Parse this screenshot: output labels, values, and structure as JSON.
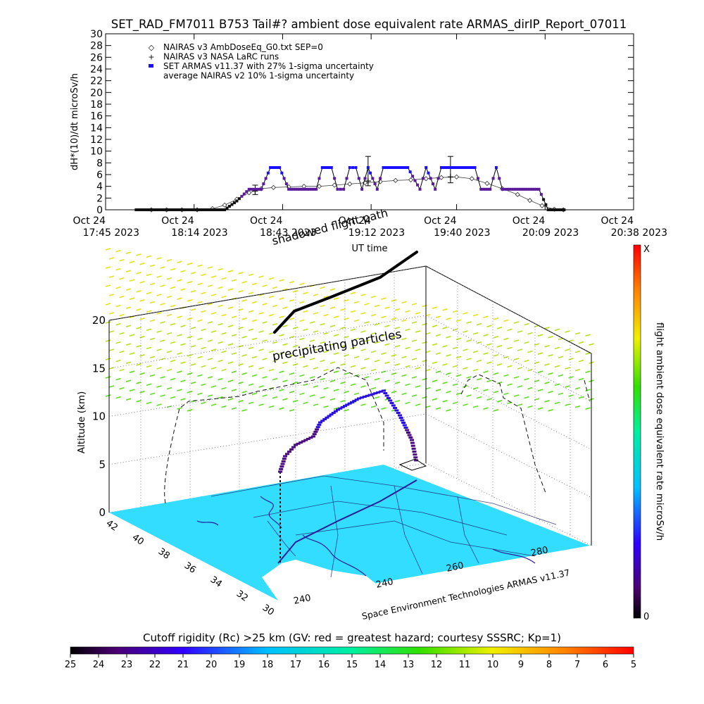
{
  "figure": {
    "title": "SET_RAD_FM7011  B753 Tail#? ambient dose equivalent rate ARMAS_dirIP_Report_07011",
    "credit": "Space Environment Technologies ARMAS v11.37"
  },
  "chart_data": [
    {
      "type": "line",
      "title": "SET_RAD_FM7011  B753 Tail#? ambient dose equivalent rate ARMAS_dirIP_Report_07011",
      "xlabel": "UT time",
      "ylabel": "dH*(10)/dt microSv/h",
      "ylim": [
        0,
        30
      ],
      "yticks": [
        0,
        2,
        4,
        6,
        8,
        10,
        12,
        14,
        16,
        18,
        20,
        22,
        24,
        26,
        28,
        30
      ],
      "xlim": [
        "2023-10-24 17:45",
        "2023-10-24 20:38"
      ],
      "xtick_values": [
        "17:45",
        "18:14",
        "18:43",
        "19:12",
        "19:40",
        "20:09",
        "20:38"
      ],
      "xtick_labels": [
        {
          "top": "Oct 24",
          "bottom": "17:45 2023"
        },
        {
          "top": "Oct 24",
          "bottom": "18:14 2023"
        },
        {
          "top": "Oct 24",
          "bottom": "18:43 2023"
        },
        {
          "top": "Oct 24",
          "bottom": "19:12 2023"
        },
        {
          "top": "Oct 24",
          "bottom": "19:40 2023"
        },
        {
          "top": "Oct 24",
          "bottom": "20:09 2023"
        },
        {
          "top": "Oct 24",
          "bottom": "20:38 2023"
        }
      ],
      "legend": [
        {
          "symbol": "◇",
          "label": "NAIRAS v3 AmbDoseEq_G0.txt SEP=0"
        },
        {
          "symbol": "+",
          "label": "NAIRAS v3 NASA LaRC runs"
        },
        {
          "symbol": "●",
          "label": "SET ARMAS v11.37 with 27% 1-sigma uncertainty",
          "color": "#1a10ff"
        },
        {
          "symbol": "",
          "label": "average NAIRAS v2 10% 1-sigma uncertainty"
        }
      ],
      "legend_position": "top-left",
      "series": [
        {
          "name": "NAIRAS v3 AmbDoseEq_G0.txt SEP=0",
          "marker": "diamond",
          "color": "#555555",
          "points": [
            [
              "18:00",
              0.0
            ],
            [
              "18:05",
              0.0
            ],
            [
              "18:10",
              0.0
            ],
            [
              "18:15",
              0.0
            ],
            [
              "18:20",
              0.2
            ],
            [
              "18:24",
              0.8
            ],
            [
              "18:28",
              1.8
            ],
            [
              "18:32",
              2.9
            ],
            [
              "18:36",
              3.6
            ],
            [
              "18:40",
              3.8
            ],
            [
              "18:45",
              3.9
            ],
            [
              "18:50",
              4.0
            ],
            [
              "18:55",
              4.0
            ],
            [
              "19:00",
              4.2
            ],
            [
              "19:05",
              4.4
            ],
            [
              "19:10",
              4.6
            ],
            [
              "19:15",
              4.8
            ],
            [
              "19:20",
              5.0
            ],
            [
              "19:25",
              5.1
            ],
            [
              "19:30",
              5.3
            ],
            [
              "19:35",
              5.5
            ],
            [
              "19:40",
              5.6
            ],
            [
              "19:45",
              5.3
            ],
            [
              "19:50",
              4.5
            ],
            [
              "19:55",
              3.6
            ],
            [
              "20:00",
              2.6
            ],
            [
              "20:04",
              1.6
            ],
            [
              "20:08",
              0.7
            ],
            [
              "20:12",
              0.1
            ],
            [
              "20:15",
              0.0
            ]
          ]
        },
        {
          "name": "NAIRAS v3 NASA LaRC runs",
          "marker": "errorbar",
          "color": "#000000",
          "points": [
            {
              "x": "18:34",
              "y": 3.2,
              "lo": 2.6,
              "hi": 4.2
            },
            {
              "x": "19:11",
              "y": 4.9,
              "lo": 4.1,
              "hi": 9.1
            },
            {
              "x": "19:38",
              "y": 5.6,
              "lo": 4.6,
              "hi": 9.1
            }
          ]
        },
        {
          "name": "SET ARMAS v11.37 with 27% 1-sigma uncertainty",
          "marker": "dot",
          "color": "#1a10ff",
          "low_color": "#5a1a9a",
          "points": [
            [
              "17:55",
              0.0
            ],
            [
              "18:00",
              0.0
            ],
            [
              "18:05",
              0.0
            ],
            [
              "18:10",
              0.0
            ],
            [
              "18:15",
              0.0
            ],
            [
              "18:20",
              0.0
            ],
            [
              "18:24",
              0.0
            ],
            [
              "18:28",
              1.5
            ],
            [
              "18:32",
              3.5
            ],
            [
              "18:36",
              3.5
            ],
            [
              "18:39",
              7.2
            ],
            [
              "18:42",
              7.2
            ],
            [
              "18:45",
              3.5
            ],
            [
              "18:48",
              3.5
            ],
            [
              "18:51",
              3.5
            ],
            [
              "18:54",
              3.5
            ],
            [
              "18:56",
              7.2
            ],
            [
              "18:59",
              7.2
            ],
            [
              "19:01",
              3.5
            ],
            [
              "19:03",
              3.5
            ],
            [
              "19:05",
              7.2
            ],
            [
              "19:07",
              7.2
            ],
            [
              "19:09",
              3.5
            ],
            [
              "19:11",
              7.2
            ],
            [
              "19:14",
              3.5
            ],
            [
              "19:16",
              7.2
            ],
            [
              "19:20",
              7.2
            ],
            [
              "19:24",
              7.2
            ],
            [
              "19:28",
              3.5
            ],
            [
              "19:30",
              7.2
            ],
            [
              "19:33",
              3.5
            ],
            [
              "19:35",
              7.2
            ],
            [
              "19:39",
              7.2
            ],
            [
              "19:43",
              7.2
            ],
            [
              "19:46",
              7.2
            ],
            [
              "19:48",
              3.5
            ],
            [
              "19:51",
              3.5
            ],
            [
              "19:53",
              7.2
            ],
            [
              "19:55",
              3.5
            ],
            [
              "19:58",
              3.5
            ],
            [
              "20:01",
              3.5
            ],
            [
              "20:04",
              3.5
            ],
            [
              "20:07",
              3.5
            ],
            [
              "20:10",
              0.0
            ],
            [
              "20:13",
              0.0
            ],
            [
              "20:16",
              0.0
            ]
          ]
        }
      ]
    },
    {
      "type": "scatter",
      "title": "",
      "ylabel": "Altitude (km)",
      "zlim": [
        0,
        20
      ],
      "zticks": [
        "0",
        "5",
        "10",
        "15",
        "20"
      ],
      "lat_ticks": [
        "42",
        "40",
        "38",
        "36",
        "34",
        "32",
        "30"
      ],
      "lon_ticks": [
        "240",
        "240",
        "260",
        "280"
      ],
      "annotations": [
        "shadowed flight path",
        "precipitating particles"
      ],
      "flight_path_km": [
        3.2,
        5.0,
        6.5,
        8.8,
        11.2,
        12.1,
        10.5,
        8.0,
        5.5
      ],
      "colorbar": {
        "label": "flight ambient dose equivalent rate microSv/h",
        "top": "X",
        "bottom": "0"
      }
    }
  ],
  "rigidity_bar": {
    "label": "Cutoff rigidity (Rc) >25 km (GV: red = greatest hazard; courtesy SSSRC; Kp=1)",
    "ticks": [
      "25",
      "24",
      "23",
      "22",
      "21",
      "20",
      "19",
      "18",
      "17",
      "16",
      "15",
      "14",
      "13",
      "12",
      "11",
      "10",
      "9",
      "8",
      "7",
      "6",
      "5"
    ]
  },
  "colors": {
    "armas_high": "#1a10ff",
    "armas_low": "#5a1a9a",
    "map_fill": "#33ddff",
    "grid": "#000000",
    "mesh": "#ccdd22"
  }
}
